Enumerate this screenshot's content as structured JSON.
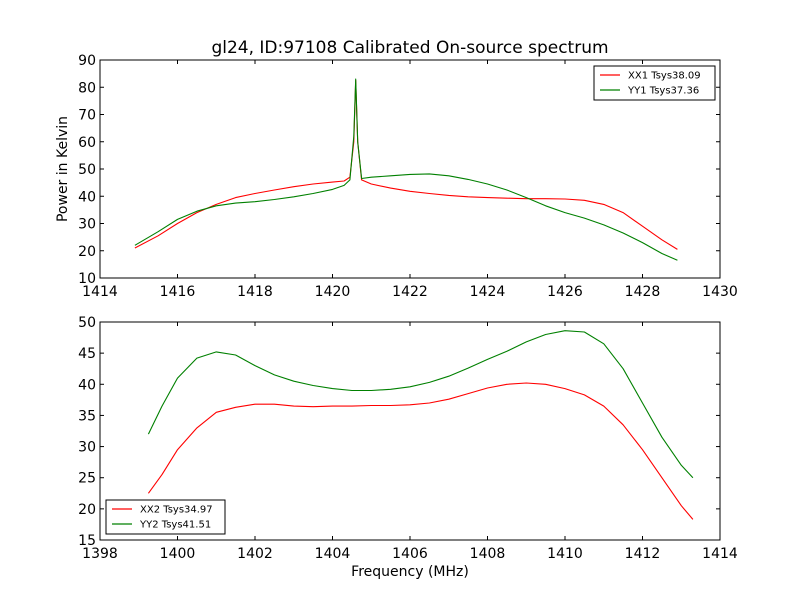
{
  "chart_data": [
    {
      "type": "line",
      "title": "gl24, ID:97108 Calibrated On-source spectrum",
      "xlabel": "",
      "ylabel": "Power in Kelvin",
      "xlim": [
        1414,
        1430
      ],
      "ylim": [
        10,
        90
      ],
      "xticks": [
        "1414",
        "1416",
        "1418",
        "1420",
        "1422",
        "1424",
        "1426",
        "1428",
        "1430"
      ],
      "yticks": [
        "10",
        "20",
        "30",
        "40",
        "50",
        "60",
        "70",
        "80",
        "90"
      ],
      "legend": "top-right",
      "series": [
        {
          "name": "XX1 Tsys38.09",
          "color": "#ff0000",
          "x": [
            1414.9,
            1415.5,
            1416.0,
            1416.5,
            1417.0,
            1417.5,
            1418.0,
            1418.5,
            1419.0,
            1419.5,
            1420.0,
            1420.3,
            1420.45,
            1420.55,
            1420.6,
            1420.65,
            1420.75,
            1421.0,
            1421.5,
            1422.0,
            1422.5,
            1423.0,
            1423.5,
            1424.0,
            1424.5,
            1425.0,
            1425.5,
            1426.0,
            1426.5,
            1427.0,
            1427.5,
            1428.0,
            1428.5,
            1428.9
          ],
          "y": [
            21,
            25.5,
            30,
            34,
            37,
            39.5,
            41,
            42.3,
            43.5,
            44.5,
            45.2,
            45.6,
            47,
            60,
            82.5,
            60,
            46,
            44.5,
            43,
            41.8,
            41,
            40.3,
            39.8,
            39.5,
            39.3,
            39.1,
            39.1,
            39,
            38.5,
            37,
            34,
            29,
            24,
            20.5
          ]
        },
        {
          "name": "YY1 Tsys37.36",
          "color": "#008000",
          "x": [
            1414.9,
            1415.5,
            1416.0,
            1416.5,
            1417.0,
            1417.5,
            1418.0,
            1418.5,
            1419.0,
            1419.5,
            1420.0,
            1420.3,
            1420.45,
            1420.55,
            1420.6,
            1420.65,
            1420.75,
            1421.0,
            1421.5,
            1422.0,
            1422.5,
            1423.0,
            1423.5,
            1424.0,
            1424.5,
            1425.0,
            1425.5,
            1426.0,
            1426.5,
            1427.0,
            1427.5,
            1428.0,
            1428.5,
            1428.9
          ],
          "y": [
            22,
            27,
            31.5,
            34.5,
            36.5,
            37.5,
            38,
            38.8,
            39.8,
            41,
            42.5,
            44,
            46,
            62,
            83,
            60,
            46.5,
            47,
            47.5,
            48,
            48.2,
            47.5,
            46.2,
            44.5,
            42.3,
            39.5,
            36.5,
            34,
            32,
            29.5,
            26.5,
            23,
            19,
            16.5
          ]
        }
      ]
    },
    {
      "type": "line",
      "title": "",
      "xlabel": "Frequency (MHz)",
      "ylabel": "",
      "xlim": [
        1398,
        1414
      ],
      "ylim": [
        15,
        50
      ],
      "xticks": [
        "1398",
        "1400",
        "1402",
        "1404",
        "1406",
        "1408",
        "1410",
        "1412",
        "1414"
      ],
      "yticks": [
        "15",
        "20",
        "25",
        "30",
        "35",
        "40",
        "45",
        "50"
      ],
      "legend": "bottom-left",
      "series": [
        {
          "name": "XX2 Tsys34.97",
          "color": "#ff0000",
          "x": [
            1399.25,
            1399.6,
            1400.0,
            1400.5,
            1401.0,
            1401.5,
            1402.0,
            1402.5,
            1403.0,
            1403.5,
            1404.0,
            1404.5,
            1405.0,
            1405.5,
            1406.0,
            1406.5,
            1407.0,
            1407.5,
            1408.0,
            1408.5,
            1409.0,
            1409.5,
            1410.0,
            1410.5,
            1411.0,
            1411.5,
            1412.0,
            1412.5,
            1413.0,
            1413.3
          ],
          "y": [
            22.5,
            25.5,
            29.5,
            33,
            35.5,
            36.3,
            36.8,
            36.8,
            36.5,
            36.4,
            36.5,
            36.5,
            36.6,
            36.6,
            36.7,
            37,
            37.6,
            38.5,
            39.4,
            40,
            40.2,
            40,
            39.3,
            38.3,
            36.5,
            33.5,
            29.5,
            25,
            20.5,
            18.3
          ]
        },
        {
          "name": "YY2 Tsys41.51",
          "color": "#008000",
          "x": [
            1399.25,
            1399.6,
            1400.0,
            1400.5,
            1401.0,
            1401.5,
            1402.0,
            1402.5,
            1403.0,
            1403.5,
            1404.0,
            1404.5,
            1405.0,
            1405.5,
            1406.0,
            1406.5,
            1407.0,
            1407.5,
            1408.0,
            1408.5,
            1409.0,
            1409.5,
            1410.0,
            1410.5,
            1411.0,
            1411.5,
            1412.0,
            1412.5,
            1413.0,
            1413.3
          ],
          "y": [
            32,
            36.5,
            41,
            44.2,
            45.2,
            44.7,
            43,
            41.5,
            40.5,
            39.8,
            39.3,
            39,
            39,
            39.2,
            39.6,
            40.3,
            41.3,
            42.6,
            44,
            45.3,
            46.8,
            48,
            48.6,
            48.4,
            46.5,
            42.5,
            37,
            31.5,
            27,
            25
          ]
        }
      ]
    }
  ]
}
